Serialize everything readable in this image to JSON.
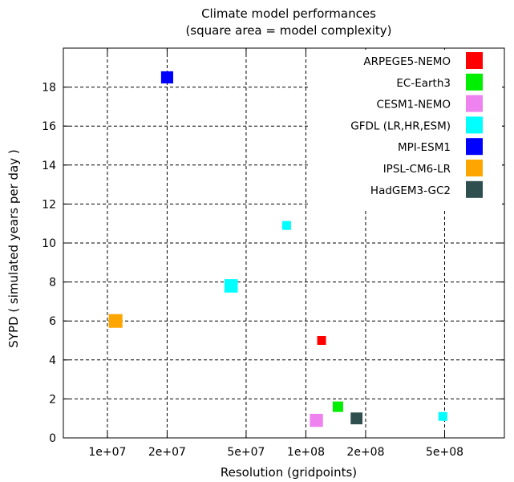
{
  "chart_data": {
    "type": "scatter",
    "title": "Climate model performances",
    "subtitle": "(square area = model complexity)",
    "xlabel": "Resolution (gridpoints)",
    "ylabel": "SYPD ( simulated years per day )",
    "x_scale": "log",
    "xlim": [
      6000000,
      1000000000
    ],
    "ylim": [
      0,
      20
    ],
    "x_ticks": [
      {
        "value": 10000000,
        "label": "1e+07"
      },
      {
        "value": 20000000,
        "label": "2e+07"
      },
      {
        "value": 50000000,
        "label": "5e+07"
      },
      {
        "value": 100000000,
        "label": "1e+08"
      },
      {
        "value": 200000000,
        "label": "2e+08"
      },
      {
        "value": 500000000,
        "label": "5e+08"
      }
    ],
    "y_ticks": [
      0,
      2,
      4,
      6,
      8,
      10,
      12,
      14,
      16,
      18
    ],
    "grid": true,
    "legend_position": "top-right",
    "series": [
      {
        "name": "ARPEGE5-NEMO",
        "color": "#ff0000",
        "points": [
          {
            "x": 120000000,
            "y": 5.0,
            "size": 1.0
          }
        ]
      },
      {
        "name": "EC-Earth3",
        "color": "#00ee00",
        "points": [
          {
            "x": 145000000,
            "y": 1.6,
            "size": 1.4
          }
        ]
      },
      {
        "name": "CESM1-NEMO",
        "color": "#ee82ee",
        "points": [
          {
            "x": 113000000,
            "y": 0.9,
            "size": 2.2
          }
        ]
      },
      {
        "name": "GFDL (LR,HR,ESM)",
        "color": "#00ffff",
        "points": [
          {
            "x": 80000000,
            "y": 10.9,
            "size": 1.0
          },
          {
            "x": 42000000,
            "y": 7.8,
            "size": 2.3
          },
          {
            "x": 490000000,
            "y": 1.1,
            "size": 1.0
          }
        ]
      },
      {
        "name": "MPI-ESM1",
        "color": "#0000ff",
        "points": [
          {
            "x": 20000000,
            "y": 18.5,
            "size": 1.9
          }
        ]
      },
      {
        "name": "IPSL-CM6-LR",
        "color": "#ffa500",
        "points": [
          {
            "x": 11000000,
            "y": 6.0,
            "size": 2.4
          }
        ]
      },
      {
        "name": "HadGEM3-GC2",
        "color": "#2f4f4f",
        "points": [
          {
            "x": 180000000,
            "y": 1.0,
            "size": 1.8
          }
        ]
      }
    ]
  }
}
